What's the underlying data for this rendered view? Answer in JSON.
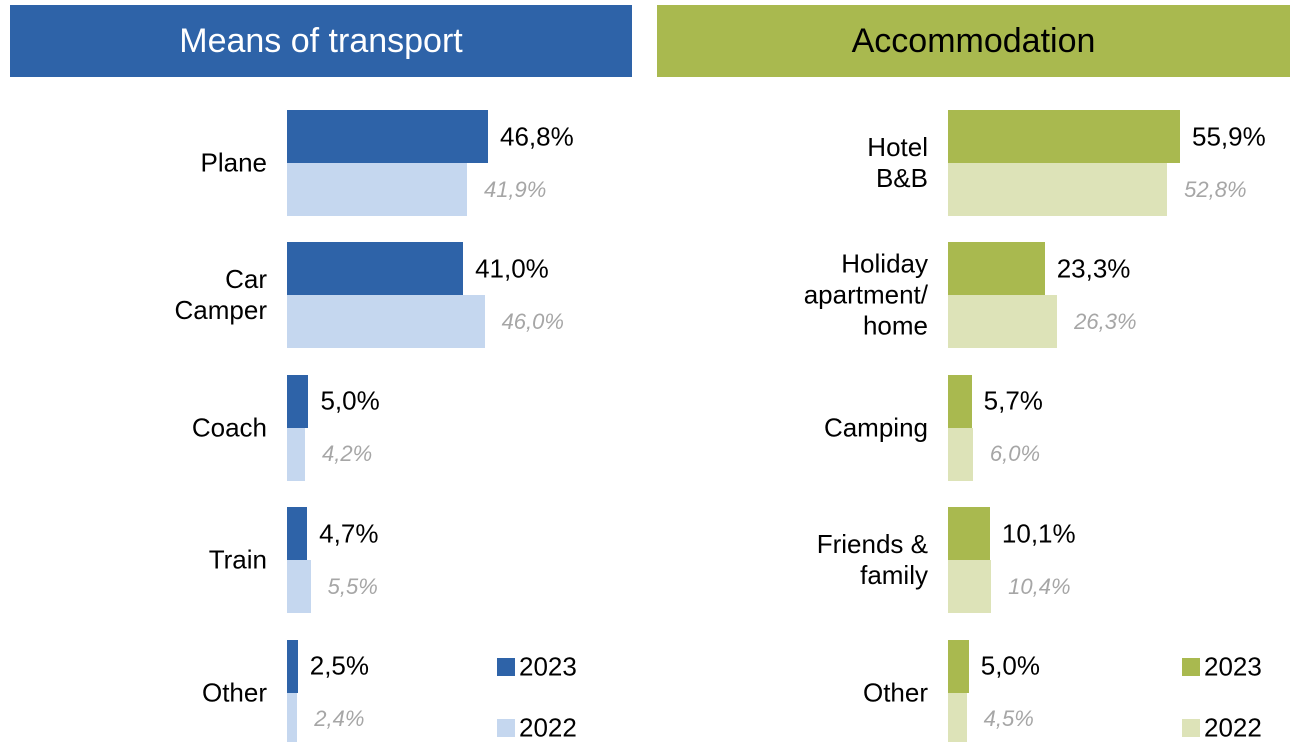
{
  "chart_data": [
    {
      "type": "bar",
      "orientation": "horizontal",
      "title": "Means of transport",
      "title_color": "#2e63a8",
      "categories": [
        "Plane",
        "Car\nCamper",
        "Coach",
        "Train",
        "Other"
      ],
      "series": [
        {
          "name": "2023",
          "color": "#2e63a8",
          "values": [
            46.8,
            41.0,
            5.0,
            4.7,
            2.5
          ],
          "value_labels": [
            "46,8%",
            "41,0%",
            "5,0%",
            "4,7%",
            "2,5%"
          ]
        },
        {
          "name": "2022",
          "color": "#c5d7ef",
          "values": [
            41.9,
            46.0,
            4.2,
            5.5,
            2.4
          ],
          "value_labels": [
            "41,9%",
            "46,0%",
            "4,2%",
            "5,5%",
            "2,4%"
          ]
        }
      ],
      "legend": "lower right"
    },
    {
      "type": "bar",
      "orientation": "horizontal",
      "title": "Accommodation",
      "title_color": "#a9b94f",
      "categories": [
        "Hotel\nB&B",
        "Holiday\napartment/\nhome",
        "Camping",
        "Friends &\nfamily",
        "Other"
      ],
      "series": [
        {
          "name": "2023",
          "color": "#a9b94f",
          "values": [
            55.9,
            23.3,
            5.7,
            10.1,
            5.0
          ],
          "value_labels": [
            "55,9%",
            "23,3%",
            "5,7%",
            "10,1%",
            "5,0%"
          ]
        },
        {
          "name": "2022",
          "color": "#dde3b8",
          "values": [
            52.8,
            26.3,
            6.0,
            10.4,
            4.5
          ],
          "value_labels": [
            "52,8%",
            "26,3%",
            "6,0%",
            "10,4%",
            "4,5%"
          ]
        }
      ],
      "legend": "lower right"
    }
  ]
}
